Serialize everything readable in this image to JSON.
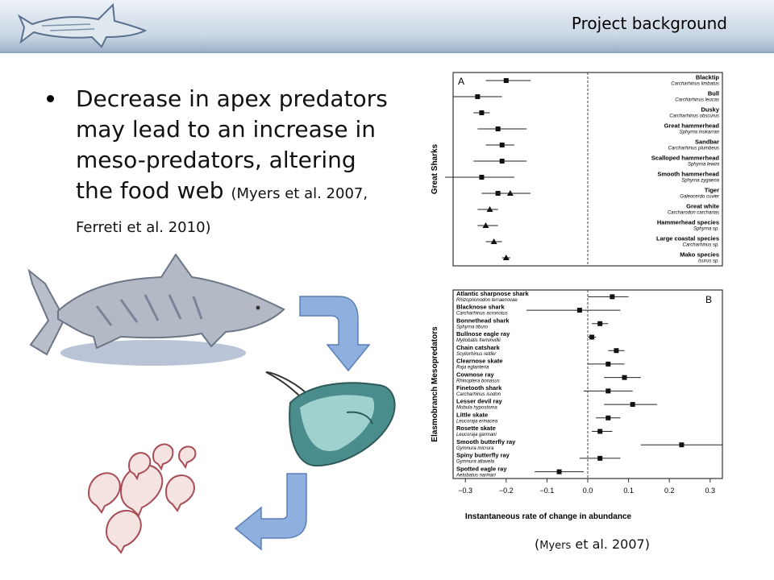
{
  "slide": {
    "title": "Project background",
    "bullet_main": "Decrease in apex predators may lead to an increase in meso-predators, altering the food web",
    "bullet_cite": "(Myers et al. 2007, Ferreti et al. 2010)",
    "reference_prefix": "(",
    "reference_small": "Myers",
    "reference_rest": " et al. 2007)"
  },
  "chart_data": [
    {
      "type": "scatter",
      "panel": "A",
      "ylabel": "Great Sharks",
      "categories": [
        {
          "name": "Blacktip",
          "species": "Carcharhinus limbatus"
        },
        {
          "name": "Bull",
          "species": "Carcharhinus leucas"
        },
        {
          "name": "Dusky",
          "species": "Carcharhinus obscurus"
        },
        {
          "name": "Great hammerhead",
          "species": "Sphyrna mokarran"
        },
        {
          "name": "Sandbar",
          "species": "Carcharhinus plumbeus"
        },
        {
          "name": "Scalloped hammerhead",
          "species": "Sphyrna lewini"
        },
        {
          "name": "Smooth hammerhead",
          "species": "Sphyrna zygaena"
        },
        {
          "name": "Tiger",
          "species": "Galeocerdo cuvier"
        },
        {
          "name": "Great white",
          "species": "Carcharodon carcharias"
        },
        {
          "name": "Hammerhead species",
          "species": "Sphyrna sp."
        },
        {
          "name": "Large coastal species",
          "species": "Carcharhinus sp."
        },
        {
          "name": "Mako species",
          "species": "Isurus sp."
        }
      ],
      "points": [
        {
          "row": 0,
          "value": -0.2,
          "low": -0.25,
          "high": -0.14,
          "marker": "square"
        },
        {
          "row": 1,
          "value": -0.27,
          "low": -0.33,
          "high": -0.21,
          "marker": "square"
        },
        {
          "row": 2,
          "value": -0.26,
          "low": -0.28,
          "high": -0.24,
          "marker": "square"
        },
        {
          "row": 3,
          "value": -0.22,
          "low": -0.27,
          "high": -0.15,
          "marker": "square"
        },
        {
          "row": 4,
          "value": -0.21,
          "low": -0.25,
          "high": -0.18,
          "marker": "square"
        },
        {
          "row": 5,
          "value": -0.21,
          "low": -0.28,
          "high": -0.15,
          "marker": "square"
        },
        {
          "row": 6,
          "value": -0.26,
          "low": -0.35,
          "high": -0.18,
          "marker": "square"
        },
        {
          "row": 7,
          "value": -0.22,
          "low": -0.26,
          "high": -0.17,
          "marker": "square"
        },
        {
          "row": 7,
          "value": -0.19,
          "low": -0.24,
          "high": -0.14,
          "marker": "triangle"
        },
        {
          "row": 8,
          "value": -0.24,
          "low": -0.27,
          "high": -0.22,
          "marker": "triangle"
        },
        {
          "row": 9,
          "value": -0.25,
          "low": -0.27,
          "high": -0.22,
          "marker": "triangle"
        },
        {
          "row": 10,
          "value": -0.23,
          "low": -0.25,
          "high": -0.21,
          "marker": "triangle"
        },
        {
          "row": 11,
          "value": -0.2,
          "low": -0.21,
          "high": -0.19,
          "marker": "triangle"
        }
      ],
      "xlim": [
        -0.35,
        0.0
      ]
    },
    {
      "type": "scatter",
      "panel": "B",
      "ylabel": "Elasmobranch Mesopredators",
      "xlabel": "Instantaneous rate of change in abundance",
      "xticks": [
        "−0.3",
        "−0.2",
        "−0.1",
        "0.0",
        "0.1",
        "0.2",
        "0.3"
      ],
      "xlim": [
        -0.33,
        0.33
      ],
      "categories": [
        {
          "name": "Atlantic sharpnose shark",
          "species": "Rhizoprionodon terraenovae"
        },
        {
          "name": "Blacknose shark",
          "species": "Carcharhinus acronotus"
        },
        {
          "name": "Bonnethead shark",
          "species": "Sphyrna tiburo"
        },
        {
          "name": "Bullnose eagle ray",
          "species": "Myliobatis freminvillii"
        },
        {
          "name": "Chain catshark",
          "species": "Scyliorhinus retifer"
        },
        {
          "name": "Clearnose skate",
          "species": "Raja eglanteria"
        },
        {
          "name": "Cownose ray",
          "species": "Rhinoptera bonasus"
        },
        {
          "name": "Finetooth shark",
          "species": "Carcharhinus isodon"
        },
        {
          "name": "Lesser devil ray",
          "species": "Mobula hypostoma"
        },
        {
          "name": "Little skate",
          "species": "Leucoraja erinacea"
        },
        {
          "name": "Rosette skate",
          "species": "Leucoraja garmani"
        },
        {
          "name": "Smooth butterfly ray",
          "species": "Gymnura micrura"
        },
        {
          "name": "Spiny butterfly ray",
          "species": "Gymnura altavela"
        },
        {
          "name": "Spotted eagle ray",
          "species": "Aetobatus narinari"
        }
      ],
      "points": [
        {
          "row": 0,
          "value": 0.06,
          "low": 0.0,
          "high": 0.1,
          "marker": "square"
        },
        {
          "row": 1,
          "value": -0.02,
          "low": -0.15,
          "high": 0.08,
          "marker": "square"
        },
        {
          "row": 2,
          "value": 0.03,
          "low": 0.01,
          "high": 0.05,
          "marker": "square"
        },
        {
          "row": 3,
          "value": 0.01,
          "low": 0.0,
          "high": 0.02,
          "marker": "square"
        },
        {
          "row": 4,
          "value": 0.07,
          "low": 0.05,
          "high": 0.09,
          "marker": "square"
        },
        {
          "row": 5,
          "value": 0.05,
          "low": 0.0,
          "high": 0.09,
          "marker": "square"
        },
        {
          "row": 6,
          "value": 0.09,
          "low": 0.04,
          "high": 0.13,
          "marker": "square"
        },
        {
          "row": 7,
          "value": 0.05,
          "low": -0.01,
          "high": 0.11,
          "marker": "square"
        },
        {
          "row": 8,
          "value": 0.11,
          "low": 0.04,
          "high": 0.17,
          "marker": "square"
        },
        {
          "row": 9,
          "value": 0.05,
          "low": 0.02,
          "high": 0.08,
          "marker": "square"
        },
        {
          "row": 10,
          "value": 0.03,
          "low": 0.01,
          "high": 0.06,
          "marker": "square"
        },
        {
          "row": 11,
          "value": 0.23,
          "low": 0.13,
          "high": 0.33,
          "marker": "square"
        },
        {
          "row": 12,
          "value": 0.03,
          "low": -0.02,
          "high": 0.08,
          "marker": "square"
        },
        {
          "row": 13,
          "value": -0.07,
          "low": -0.13,
          "high": -0.01,
          "marker": "square"
        }
      ]
    }
  ]
}
